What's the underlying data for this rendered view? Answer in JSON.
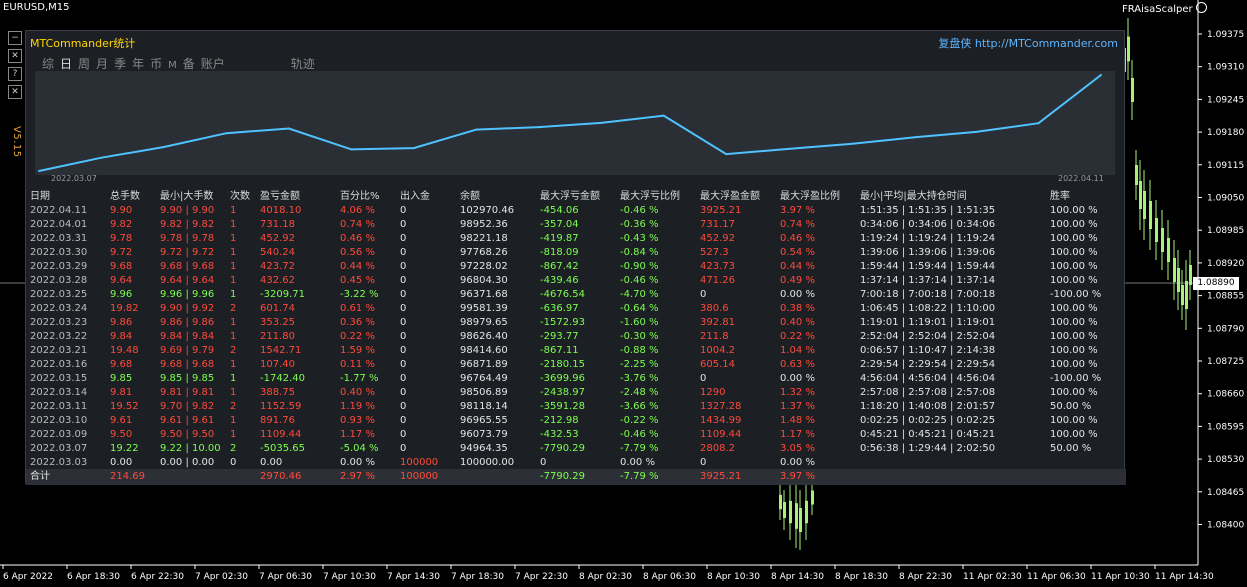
{
  "chart": {
    "symbol": "EURUSD,M15",
    "ea_name": "FRAisaScalper",
    "ea_icon": "smiley-icon",
    "price_labels": [
      "1.09375",
      "1.09310",
      "1.09245",
      "1.09180",
      "1.09115",
      "1.09050",
      "1.08985",
      "1.08920",
      "1.08855",
      "1.08790",
      "1.08725",
      "1.08660",
      "1.08595",
      "1.08530",
      "1.08465",
      "1.08400"
    ],
    "current_price": "1.08890",
    "time_labels": [
      "6 Apr 2022",
      "6 Apr 18:30",
      "6 Apr 22:30",
      "7 Apr 02:30",
      "7 Apr 06:30",
      "7 Apr 10:30",
      "7 Apr 14:30",
      "7 Apr 18:30",
      "7 Apr 22:30",
      "8 Apr 02:30",
      "8 Apr 06:30",
      "8 Apr 10:30",
      "8 Apr 14:30",
      "8 Apr 18:30",
      "8 Apr 22:30",
      "11 Apr 02:30",
      "11 Apr 06:30",
      "11 Apr 10:30",
      "11 Apr 14:30"
    ]
  },
  "side_controls": [
    "−",
    "✕",
    "?",
    "✕"
  ],
  "version_text": "V5.15",
  "panel": {
    "title": "MTCommander统计",
    "link": "复盘侠 http://MTCommander.com",
    "tabs": [
      "综",
      "日",
      "周",
      "月",
      "季",
      "年",
      "币",
      "M",
      "备",
      "账户",
      "轨迹"
    ],
    "active_tab": "日",
    "mini_start": "2022.03.07",
    "mini_end": "2022.04.11",
    "headers": [
      "日期",
      "总手数",
      "最小|大手数",
      "次数",
      "盈亏金额",
      "百分比%",
      "出入金",
      "余额",
      "最大浮亏金额",
      "最大浮亏比例",
      "最大浮盈金额",
      "最大浮盈比例",
      "最小|平均|最大持仓时间",
      "胜率"
    ],
    "rows": [
      [
        "2022.04.11",
        "9.90",
        "9.90 | 9.90",
        "1",
        "4018.10",
        "4.06 %",
        "0",
        "102970.46",
        "-454.06",
        "-0.46 %",
        "3925.21",
        "3.97 %",
        "1:51:35 | 1:51:35 | 1:51:35",
        "100.00 %"
      ],
      [
        "2022.04.01",
        "9.82",
        "9.82 | 9.82",
        "1",
        "731.18",
        "0.74 %",
        "0",
        "98952.36",
        "-357.04",
        "-0.36 %",
        "731.17",
        "0.74 %",
        "0:34:06 | 0:34:06 | 0:34:06",
        "100.00 %"
      ],
      [
        "2022.03.31",
        "9.78",
        "9.78 | 9.78",
        "1",
        "452.92",
        "0.46 %",
        "0",
        "98221.18",
        "-419.87",
        "-0.43 %",
        "452.92",
        "0.46 %",
        "1:19:24 | 1:19:24 | 1:19:24",
        "100.00 %"
      ],
      [
        "2022.03.30",
        "9.72",
        "9.72 | 9.72",
        "1",
        "540.24",
        "0.56 %",
        "0",
        "97768.26",
        "-818.09",
        "-0.84 %",
        "527.3",
        "0.54 %",
        "1:39:06 | 1:39:06 | 1:39:06",
        "100.00 %"
      ],
      [
        "2022.03.29",
        "9.68",
        "9.68 | 9.68",
        "1",
        "423.72",
        "0.44 %",
        "0",
        "97228.02",
        "-867.42",
        "-0.90 %",
        "423.73",
        "0.44 %",
        "1:59:44 | 1:59:44 | 1:59:44",
        "100.00 %"
      ],
      [
        "2022.03.28",
        "9.64",
        "9.64 | 9.64",
        "1",
        "432.62",
        "0.45 %",
        "0",
        "96804.30",
        "-439.46",
        "-0.46 %",
        "471.26",
        "0.49 %",
        "1:37:14 | 1:37:14 | 1:37:14",
        "100.00 %"
      ],
      [
        "2022.03.25",
        "9.96",
        "9.96 | 9.96",
        "1",
        "-3209.71",
        "-3.22 %",
        "0",
        "96371.68",
        "-4676.54",
        "-4.70 %",
        "0",
        "0.00 %",
        "7:00:18 | 7:00:18 | 7:00:18",
        "-100.00 %"
      ],
      [
        "2022.03.24",
        "19.82",
        "9.90 | 9.92",
        "2",
        "601.74",
        "0.61 %",
        "0",
        "99581.39",
        "-636.97",
        "-0.64 %",
        "380.6",
        "0.38 %",
        "1:06:45 | 1:08:22 | 1:10:00",
        "100.00 %"
      ],
      [
        "2022.03.23",
        "9.86",
        "9.86 | 9.86",
        "1",
        "353.25",
        "0.36 %",
        "0",
        "98979.65",
        "-1572.93",
        "-1.60 %",
        "392.81",
        "0.40 %",
        "1:19:01 | 1:19:01 | 1:19:01",
        "100.00 %"
      ],
      [
        "2022.03.22",
        "9.84",
        "9.84 | 9.84",
        "1",
        "211.80",
        "0.22 %",
        "0",
        "98626.40",
        "-293.77",
        "-0.30 %",
        "211.8",
        "0.22 %",
        "2:52:04 | 2:52:04 | 2:52:04",
        "100.00 %"
      ],
      [
        "2022.03.21",
        "19.48",
        "9.69 | 9.79",
        "2",
        "1542.71",
        "1.59 %",
        "0",
        "98414.60",
        "-867.11",
        "-0.88 %",
        "1004.2",
        "1.04 %",
        "0:06:57 | 1:10:47 | 2:14:38",
        "100.00 %"
      ],
      [
        "2022.03.16",
        "9.68",
        "9.68 | 9.68",
        "1",
        "107.40",
        "0.11 %",
        "0",
        "96871.89",
        "-2180.15",
        "-2.25 %",
        "605.14",
        "0.63 %",
        "2:29:54 | 2:29:54 | 2:29:54",
        "100.00 %"
      ],
      [
        "2022.03.15",
        "9.85",
        "9.85 | 9.85",
        "1",
        "-1742.40",
        "-1.77 %",
        "0",
        "96764.49",
        "-3699.96",
        "-3.76 %",
        "0",
        "0.00 %",
        "4:56:04 | 4:56:04 | 4:56:04",
        "-100.00 %"
      ],
      [
        "2022.03.14",
        "9.81",
        "9.81 | 9.81",
        "1",
        "388.75",
        "0.40 %",
        "0",
        "98506.89",
        "-2438.97",
        "-2.48 %",
        "1290",
        "1.32 %",
        "2:57:08 | 2:57:08 | 2:57:08",
        "100.00 %"
      ],
      [
        "2022.03.11",
        "19.52",
        "9.70 | 9.82",
        "2",
        "1152.59",
        "1.19 %",
        "0",
        "98118.14",
        "-3591.28",
        "-3.66 %",
        "1327.28",
        "1.37 %",
        "1:18:20 | 1:40:08 | 2:01:57",
        "50.00 %"
      ],
      [
        "2022.03.10",
        "9.61",
        "9.61 | 9.61",
        "1",
        "891.76",
        "0.93 %",
        "0",
        "96965.55",
        "-212.98",
        "-0.22 %",
        "1434.99",
        "1.48 %",
        "0:02:25 | 0:02:25 | 0:02:25",
        "100.00 %"
      ],
      [
        "2022.03.09",
        "9.50",
        "9.50 | 9.50",
        "1",
        "1109.44",
        "1.17 %",
        "0",
        "96073.79",
        "-432.53",
        "-0.46 %",
        "1109.44",
        "1.17 %",
        "0:45:21 | 0:45:21 | 0:45:21",
        "100.00 %"
      ],
      [
        "2022.03.07",
        "19.22",
        "9.22 | 10.00",
        "2",
        "-5035.65",
        "-5.04 %",
        "0",
        "94964.35",
        "-7790.29",
        "-7.79 %",
        "2808.2",
        "3.05 %",
        "0:56:38 | 1:29:44 | 2:02:50",
        "50.00 %"
      ],
      [
        "2022.03.03",
        "0.00",
        "0.00 | 0.00",
        "0",
        "0.00",
        "0.00 %",
        "100000",
        "100000.00",
        "0",
        "0.00 %",
        "0",
        "0.00 %",
        "",
        ""
      ]
    ],
    "row_colors": [
      "red",
      "red",
      "red",
      "red",
      "red",
      "red",
      "grn",
      "red",
      "red",
      "red",
      "red",
      "red",
      "grn",
      "red",
      "red",
      "red",
      "red",
      "grn",
      "wht"
    ],
    "footer": [
      "合计",
      "214.69",
      "",
      "",
      "2970.46",
      "2.97 %",
      "100000",
      "",
      "-7790.29",
      "-7.79 %",
      "3925.21",
      "3.97 %",
      "",
      ""
    ],
    "equity": [
      94964.35,
      96073.79,
      96965.55,
      98118.14,
      98506.89,
      96764.49,
      96871.89,
      98414.6,
      98626.4,
      98979.65,
      99581.39,
      96371.68,
      96804.3,
      97228.02,
      97768.26,
      98221.18,
      98952.36,
      102970.46
    ]
  },
  "colors": {
    "bull_candle": "#a8f07a",
    "equity_line": "#4fc3ff",
    "loss": "#ff4a3a",
    "profit": "#7cff4e"
  }
}
